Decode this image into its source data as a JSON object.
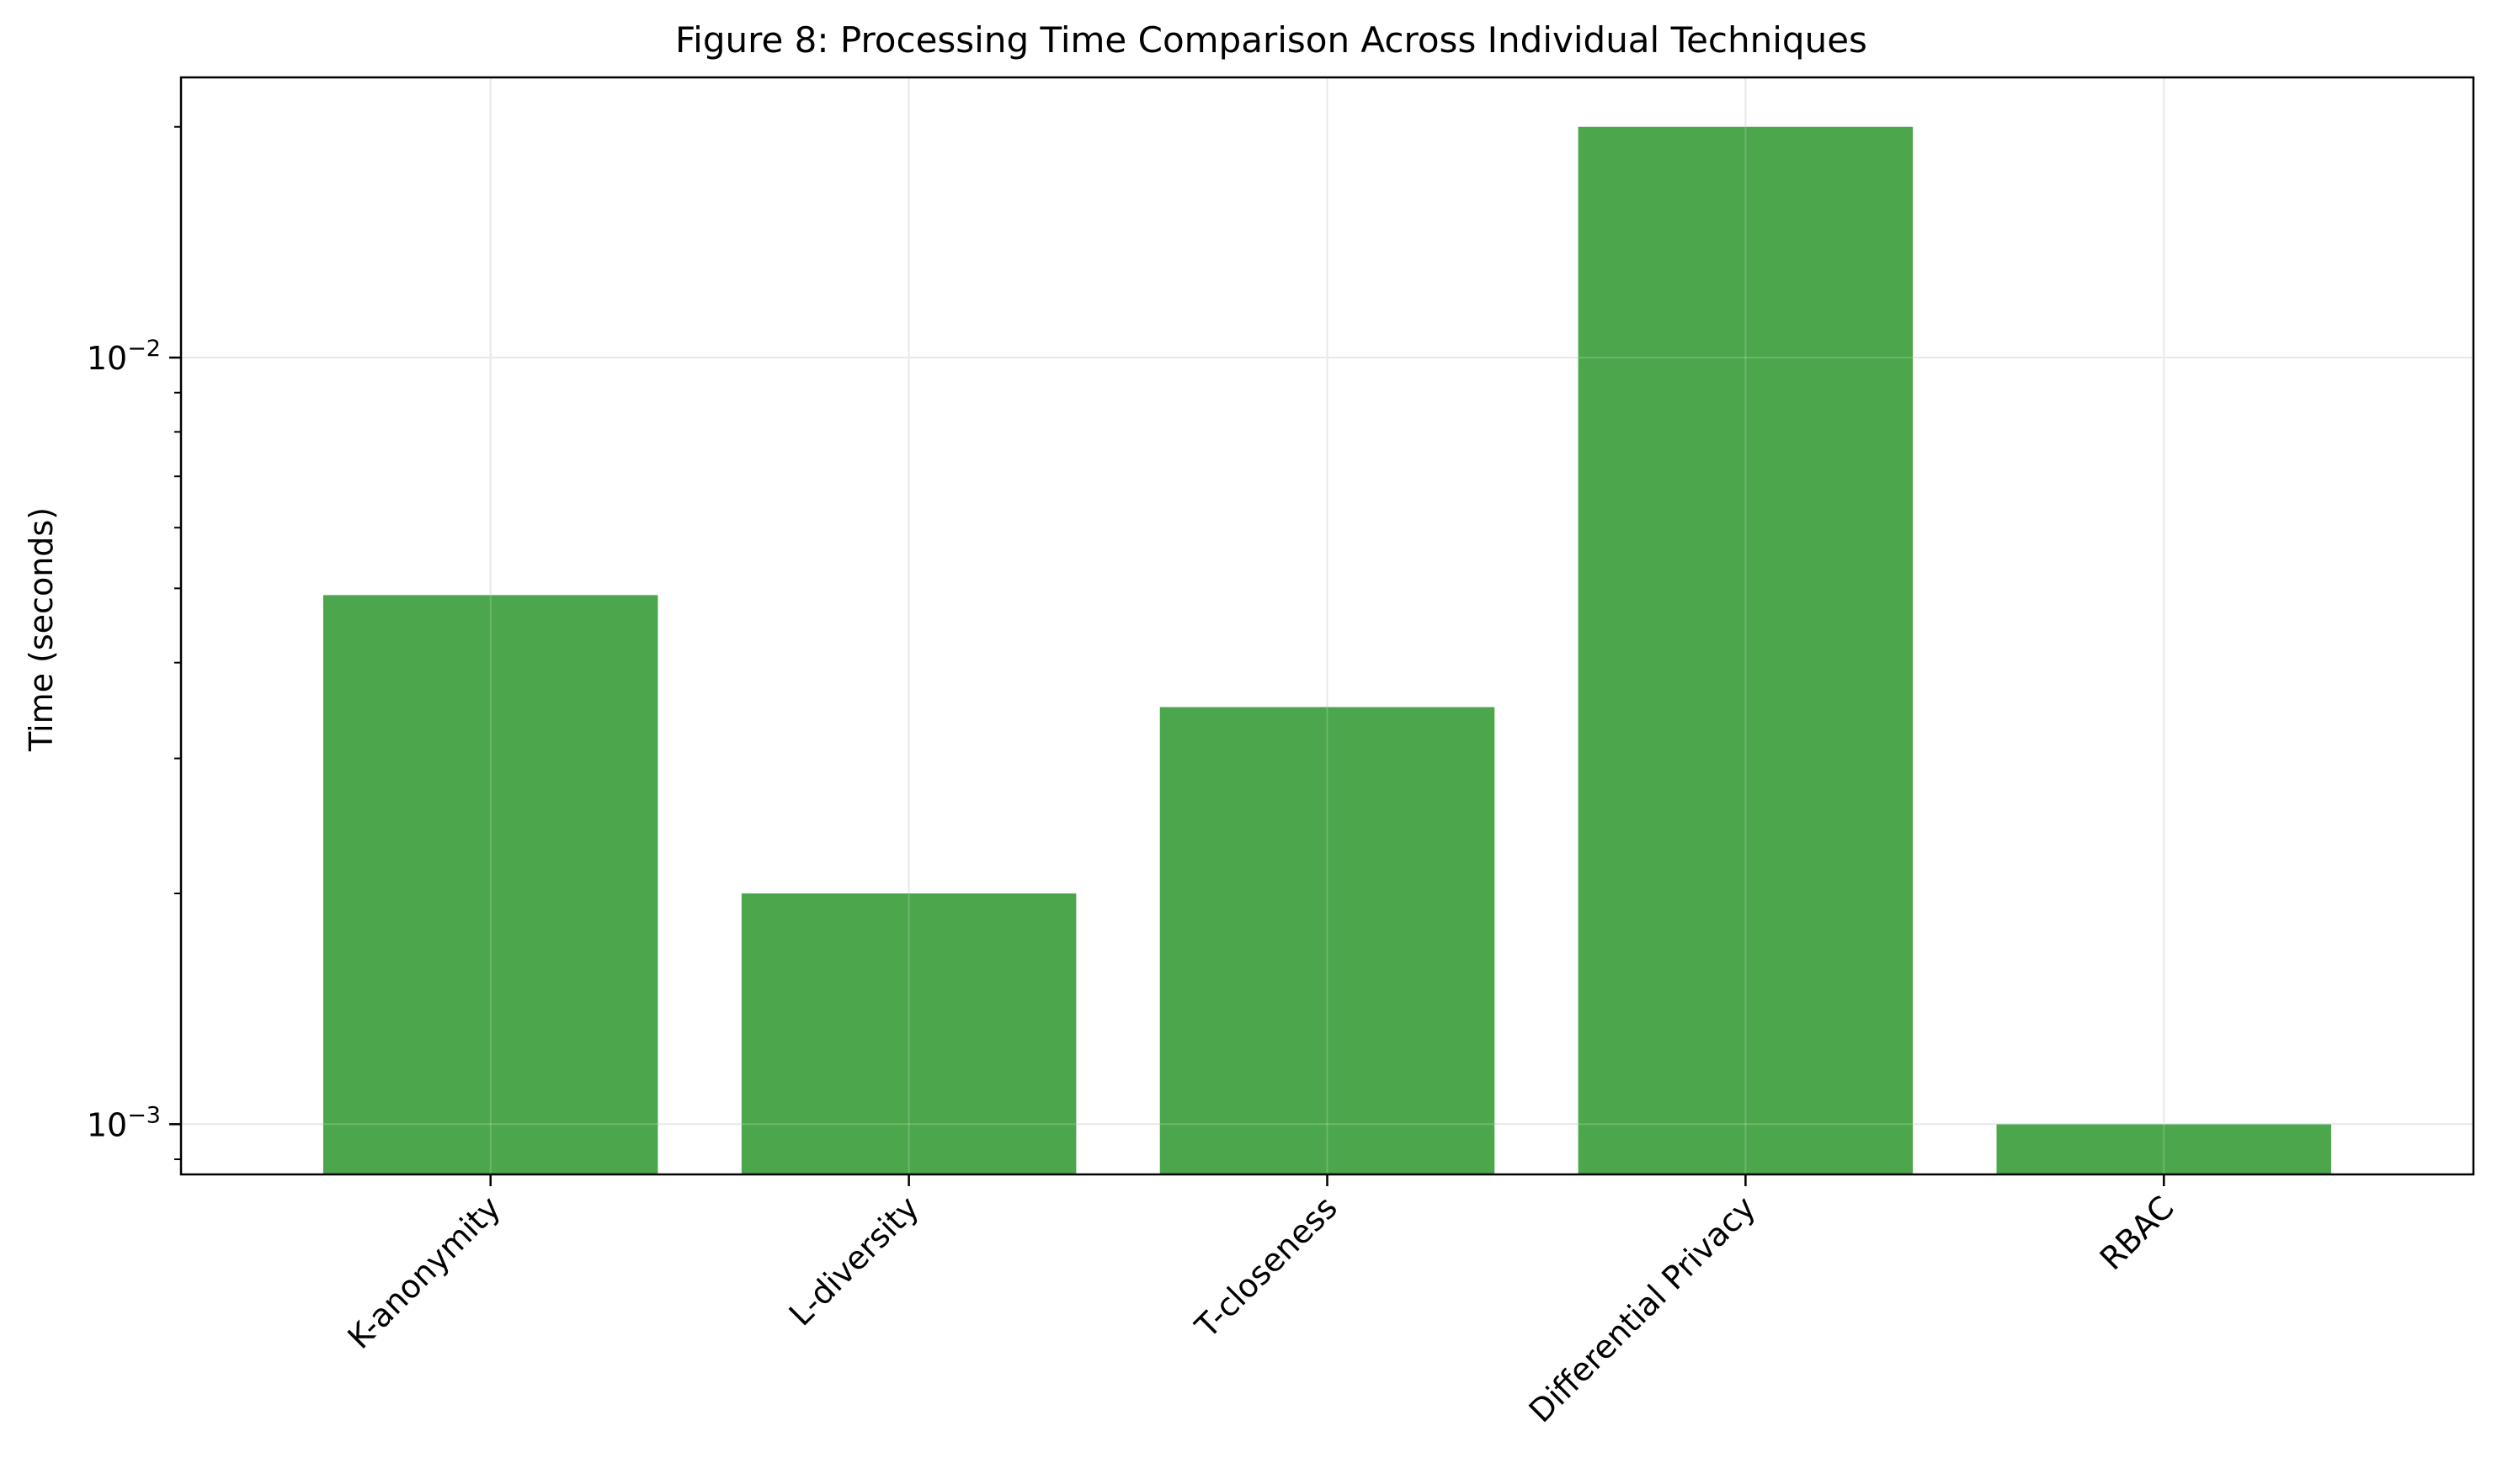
{
  "chart_data": {
    "type": "bar",
    "title": "Figure 8: Processing Time Comparison Across Individual Techniques",
    "xlabel": "",
    "ylabel": "Time (seconds)",
    "yscale": "log",
    "ylim": [
      0.00086,
      0.0232
    ],
    "grid": true,
    "categories": [
      "K-anonymity",
      "L-diversity",
      "T-closeness",
      "Differential Privacy",
      "RBAC"
    ],
    "values": [
      0.0049,
      0.002,
      0.0035,
      0.02,
      0.001
    ],
    "yticks": [
      {
        "value": 0.01,
        "base": "10",
        "exp": "−2"
      },
      {
        "value": 0.001,
        "base": "10",
        "exp": "−3"
      }
    ],
    "bar_color": "#4ca64c",
    "grid_color": "#e3e3e3"
  }
}
